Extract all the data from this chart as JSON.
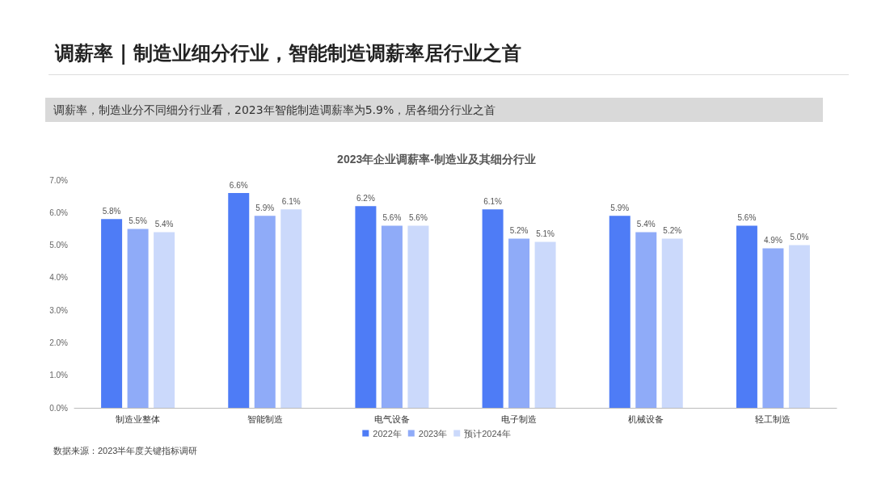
{
  "chart_data": {
    "type": "bar",
    "title": "调薪率 | 制造业细分行业，智能制造调薪率居行业之首",
    "subtitle": "调薪率，制造业分不同细分行业看，2023年智能制造调薪率为5.9%，居各细分行业之首",
    "annotations": [
      "2023年企业调薪率-制造业及其细分行业",
      "数据来源：2023半年度关键指标调研"
    ],
    "categories": [
      "制造业整体",
      "智能制造",
      "电气设备",
      "电子制造",
      "机械设备",
      "轻工制造"
    ],
    "series": [
      {
        "name": "2022年",
        "color": "#4e7cf6",
        "values": [
          5.8,
          6.6,
          6.2,
          6.1,
          5.9,
          5.6
        ],
        "value_labels": [
          "5.8%",
          "6.6%",
          "6.2%",
          "6.1%",
          "5.9%",
          "5.6%"
        ]
      },
      {
        "name": "2023年",
        "color": "#8fabf8",
        "values": [
          5.5,
          5.9,
          5.6,
          5.2,
          5.4,
          4.9
        ],
        "value_labels": [
          "5.5%",
          "5.9%",
          "5.6%",
          "5.2%",
          "5.4%",
          "4.9%"
        ]
      },
      {
        "name": "预计2024年",
        "color": "#cbd9fb",
        "values": [
          5.4,
          6.1,
          5.6,
          5.1,
          5.2,
          5.0
        ],
        "value_labels": [
          "5.4%",
          "6.1%",
          "5.6%",
          "5.1%",
          "5.2%",
          "5.0%"
        ]
      }
    ],
    "ylim": [
      0,
      7
    ],
    "yticks": [
      {
        "value": 0,
        "label": "0.0%"
      },
      {
        "value": 1,
        "label": "1.0%"
      },
      {
        "value": 2,
        "label": "2.0%"
      },
      {
        "value": 3,
        "label": "3.0%"
      },
      {
        "value": 4,
        "label": "4.0%"
      },
      {
        "value": 5,
        "label": "5.0%"
      },
      {
        "value": 6,
        "label": "6.0%"
      },
      {
        "value": 7,
        "label": "7.0%"
      }
    ],
    "grid": false,
    "legend": "bottom"
  }
}
